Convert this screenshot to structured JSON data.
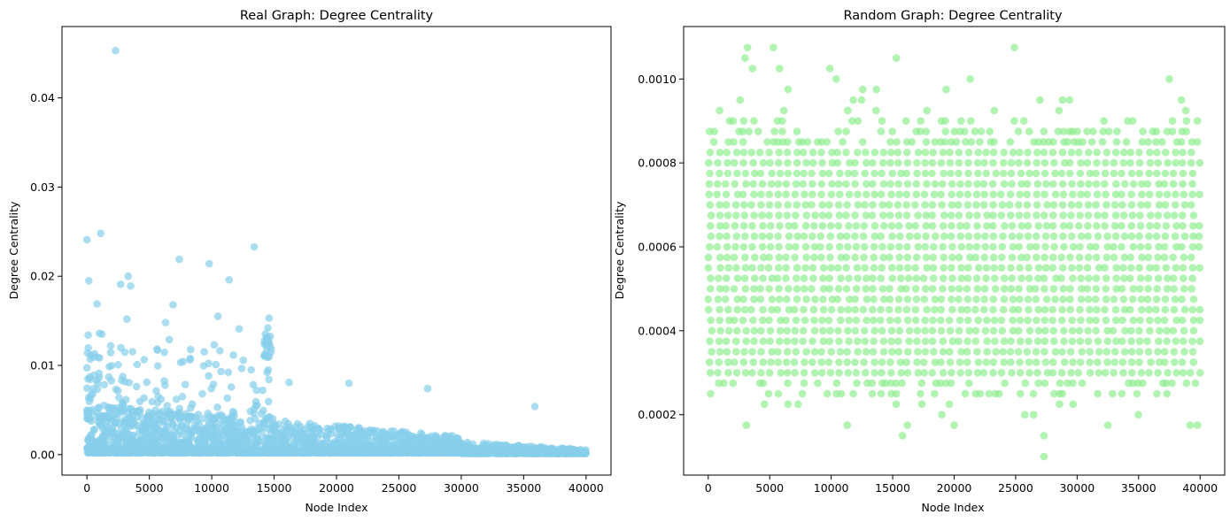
{
  "chart_data": [
    {
      "type": "scatter",
      "title": "Real Graph: Degree Centrality",
      "xlabel": "Node Index",
      "ylabel": "Degree Centrality",
      "xlim": [
        -2000,
        42000
      ],
      "ylim": [
        -0.0023,
        0.048
      ],
      "xticks": [
        0,
        5000,
        10000,
        15000,
        20000,
        25000,
        30000,
        35000,
        40000
      ],
      "xtick_labels": [
        "0",
        "5000",
        "10000",
        "15000",
        "20000",
        "25000",
        "30000",
        "35000",
        "40000"
      ],
      "yticks": [
        0,
        0.01,
        0.02,
        0.03,
        0.04
      ],
      "ytick_labels": [
        "0.00",
        "0.01",
        "0.02",
        "0.03",
        "0.04"
      ],
      "grid": false,
      "color": "#87CEEB",
      "alpha": 0.7,
      "n_points": 40000,
      "notable_points": [
        {
          "x": 2300,
          "y": 0.0453
        },
        {
          "x": 0,
          "y": 0.0241
        },
        {
          "x": 1100,
          "y": 0.0248
        },
        {
          "x": 13400,
          "y": 0.0233
        },
        {
          "x": 7400,
          "y": 0.0219
        },
        {
          "x": 9800,
          "y": 0.0214
        },
        {
          "x": 3300,
          "y": 0.02
        },
        {
          "x": 11400,
          "y": 0.0196
        },
        {
          "x": 150,
          "y": 0.0195
        },
        {
          "x": 2700,
          "y": 0.0191
        },
        {
          "x": 3500,
          "y": 0.0189
        },
        {
          "x": 800,
          "y": 0.0169
        },
        {
          "x": 6900,
          "y": 0.0168
        },
        {
          "x": 10500,
          "y": 0.0155
        },
        {
          "x": 14600,
          "y": 0.0153
        },
        {
          "x": 3200,
          "y": 0.0152
        },
        {
          "x": 6300,
          "y": 0.0148
        },
        {
          "x": 12200,
          "y": 0.0141
        },
        {
          "x": 14500,
          "y": 0.0142
        },
        {
          "x": 14300,
          "y": 0.0135
        },
        {
          "x": 100,
          "y": 0.0134
        },
        {
          "x": 1000,
          "y": 0.0136
        },
        {
          "x": 1200,
          "y": 0.0135
        },
        {
          "x": 6600,
          "y": 0.0129
        },
        {
          "x": 10200,
          "y": 0.0123
        },
        {
          "x": 1900,
          "y": 0.0122
        },
        {
          "x": 16200,
          "y": 0.0081
        },
        {
          "x": 21000,
          "y": 0.008
        },
        {
          "x": 27300,
          "y": 0.0074
        },
        {
          "x": 35900,
          "y": 0.0054
        }
      ]
    },
    {
      "type": "scatter",
      "title": "Random Graph: Degree Centrality",
      "xlabel": "Node Index",
      "ylabel": "Degree Centrality",
      "xlim": [
        -2000,
        42000
      ],
      "ylim": [
        5.6e-05,
        0.001125
      ],
      "xticks": [
        0,
        5000,
        10000,
        15000,
        20000,
        25000,
        30000,
        35000,
        40000
      ],
      "xtick_labels": [
        "0",
        "5000",
        "10000",
        "15000",
        "20000",
        "25000",
        "30000",
        "35000",
        "40000"
      ],
      "yticks": [
        0.0002,
        0.0004,
        0.0006,
        0.0008,
        0.001
      ],
      "ytick_labels": [
        "0.0002",
        "0.0004",
        "0.0006",
        "0.0008",
        "0.0010"
      ],
      "grid": false,
      "color": "#90EE90",
      "alpha": 0.7,
      "n_points": 40000,
      "dense_band": [
        0.0003,
        0.000825
      ],
      "value_step": 2.5e-05,
      "notable_points": [
        {
          "x": 3200,
          "y": 0.001075
        },
        {
          "x": 5300,
          "y": 0.001075
        },
        {
          "x": 24900,
          "y": 0.001075
        },
        {
          "x": 3000,
          "y": 0.00105
        },
        {
          "x": 15300,
          "y": 0.00105
        },
        {
          "x": 3600,
          "y": 0.001025
        },
        {
          "x": 5800,
          "y": 0.001025
        },
        {
          "x": 9900,
          "y": 0.001025
        },
        {
          "x": 10400,
          "y": 0.001
        },
        {
          "x": 21300,
          "y": 0.001
        },
        {
          "x": 37500,
          "y": 0.001
        },
        {
          "x": 27300,
          "y": 0.0001
        },
        {
          "x": 27300,
          "y": 0.00015
        },
        {
          "x": 15800,
          "y": 0.00015
        },
        {
          "x": 16200,
          "y": 0.000175
        },
        {
          "x": 3100,
          "y": 0.000175
        },
        {
          "x": 11300,
          "y": 0.000175
        },
        {
          "x": 20000,
          "y": 0.000175
        },
        {
          "x": 32500,
          "y": 0.000175
        },
        {
          "x": 39800,
          "y": 0.000175
        },
        {
          "x": 39200,
          "y": 0.000175
        }
      ]
    }
  ]
}
